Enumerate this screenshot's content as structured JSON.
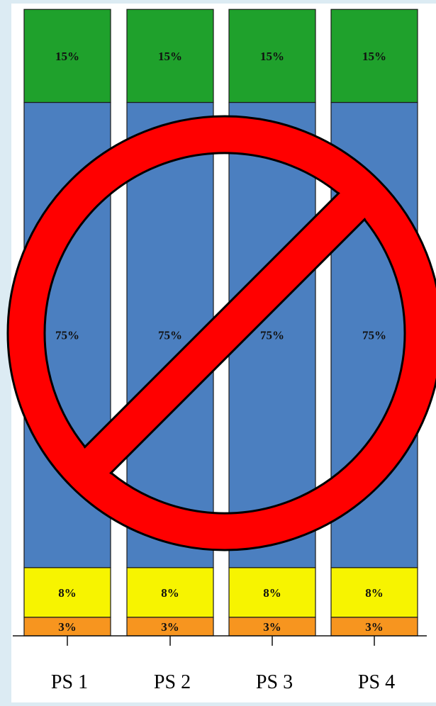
{
  "chart_data": {
    "type": "bar",
    "stacked": true,
    "normalized": true,
    "categories": [
      "PS 1",
      "PS 2",
      "PS 3",
      "PS 4"
    ],
    "series": [
      {
        "values": [
          3,
          3,
          3,
          3
        ],
        "color": "#f7951f"
      },
      {
        "values": [
          8,
          8,
          8,
          8
        ],
        "color": "#f7f400"
      },
      {
        "values": [
          75,
          75,
          75,
          75
        ],
        "color": "#4b7fc0"
      },
      {
        "values": [
          15,
          15,
          15,
          15
        ],
        "color": "#1fa12c"
      }
    ],
    "data_labels": {
      "series_0": [
        "3%",
        "3%",
        "3%",
        "3%"
      ],
      "series_1": [
        "8%",
        "8%",
        "8%",
        "8%"
      ],
      "series_2": [
        "75%",
        "75%",
        "75%",
        "75%"
      ],
      "series_3": [
        "15%",
        "15%",
        "15%",
        "15%"
      ]
    },
    "ylim": [
      0,
      100
    ],
    "grid": false,
    "legend": "none"
  },
  "overlay": {
    "icon": "no-symbol-icon",
    "fill_color": "#ff0000",
    "outline_color": "#000000"
  },
  "colors": {
    "background": "#dcebf3",
    "plot_background": "#ffffff"
  }
}
